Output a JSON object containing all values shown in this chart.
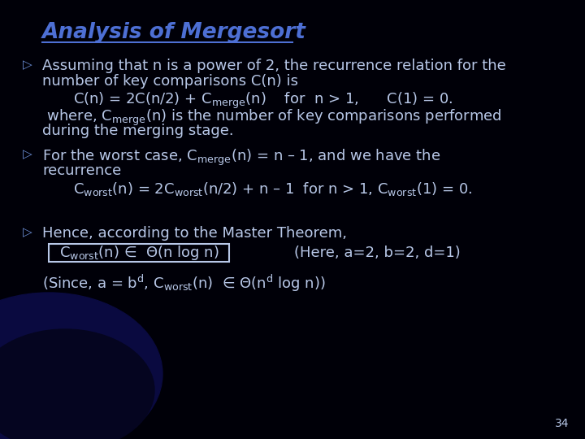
{
  "title": "Analysis of Mergesort",
  "title_color": "#4d6fd4",
  "bg_color": "#000008",
  "text_color": "#b8c8e8",
  "bullet_color": "#6688cc",
  "slide_number": "34",
  "en_dash": "–",
  "elem_in": "∈",
  "theta": "Θ"
}
